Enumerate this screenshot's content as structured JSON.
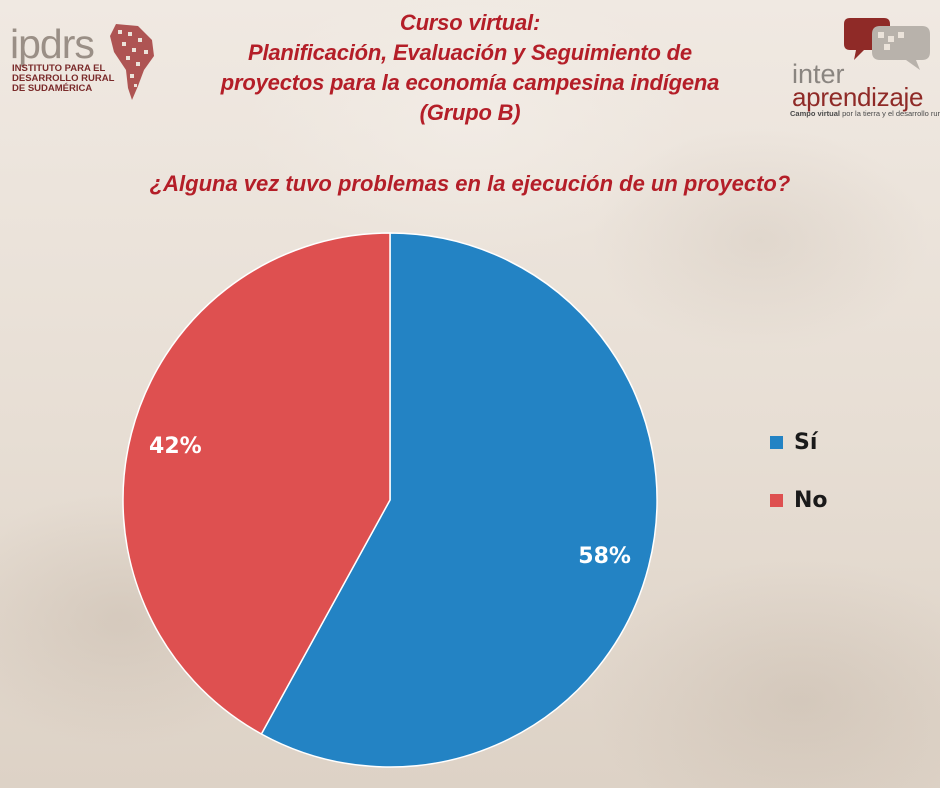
{
  "header": {
    "line1": "Curso virtual:",
    "line2": "Planificación, Evaluación y Seguimiento de",
    "line3": "proyectos para la economía campesina indígena",
    "line4": "(Grupo B)"
  },
  "logo_left": {
    "mark": "ipdrs",
    "sub1": "INSTITUTO PARA EL",
    "sub2": "DESARROLLO RURAL",
    "sub3": "DE SUDAMÉRICA"
  },
  "logo_right": {
    "word1": "inter",
    "word2": "aprendizaje",
    "tag_bold": "Campo virtual",
    "tag_rest": " por la tierra y el desarrollo rural"
  },
  "colors": {
    "accent": "#b41e28",
    "si": "#2383c4",
    "no": "#de5050"
  },
  "chart_data": {
    "type": "pie",
    "title": "¿Alguna vez tuvo problemas en la ejecución de un proyecto?",
    "slices": [
      {
        "name": "Sí",
        "value": 58,
        "label": "58%",
        "color": "#2383c4"
      },
      {
        "name": "No",
        "value": 42,
        "label": "42%",
        "color": "#de5050"
      }
    ],
    "legend_position": "right"
  }
}
